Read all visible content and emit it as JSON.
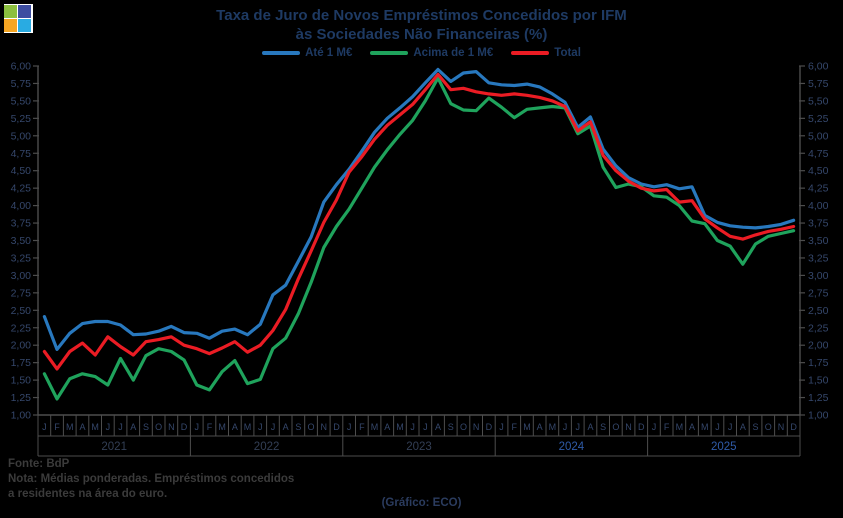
{
  "page": {
    "background": "#000000"
  },
  "logo": {
    "square_colors": {
      "top_left": "#8CBF3F",
      "top_right": "#3D4DA1",
      "bottom_left": "#F5A623",
      "bottom_right": "#29ABE2"
    }
  },
  "title": {
    "line1": "Taxa de Juro de Novos Empréstimos Concedidos por IFM",
    "line2": "às Sociedades Não Financeiras (%)",
    "color": "#1E3A63"
  },
  "legend": [
    {
      "label": "Até 1 M€",
      "color": "#2878BE"
    },
    {
      "label": "Acima de 1 M€",
      "color": "#1FA35C"
    },
    {
      "label": "Total",
      "color": "#EB1C24"
    }
  ],
  "notes": {
    "source": "Fonte: BdP",
    "note_line1": "Nota: Médias ponderadas. Empréstimos concedidos",
    "note_line2": "a residentes na área do euro.",
    "credit": "(Gráfico: ECO)",
    "text_color": "#3B3B3B",
    "credit_color": "#2B3C5F"
  },
  "axis_style": {
    "line_color": "#4D4D4D",
    "tick_label_color": "#35476B",
    "month_letter_color": "#35476B",
    "year_label_colors": [
      "#333F55",
      "#333F55",
      "#333F55",
      "#2F5BA8",
      "#2F5BA8"
    ]
  },
  "chart_data": {
    "type": "line",
    "title": "Taxa de Juro de Novos Empréstimos Concedidos por IFM às Sociedades Não Financeiras (%)",
    "ylim": [
      1.0,
      6.0
    ],
    "ytick_step": 0.25,
    "ytick_decimal": "comma",
    "grid": false,
    "legend_position": "top-center",
    "years": [
      2021,
      2022,
      2023,
      2024,
      2025
    ],
    "month_letters": [
      "J",
      "F",
      "M",
      "A",
      "M",
      "J",
      "J",
      "A",
      "S",
      "O",
      "N",
      "D"
    ],
    "x_range": "Jan 2021 - Dez 2025",
    "series": [
      {
        "name": "Até 1 M€",
        "color": "#2878BE",
        "values": [
          2.41,
          1.94,
          2.17,
          2.31,
          2.34,
          2.34,
          2.29,
          2.15,
          2.16,
          2.2,
          2.27,
          2.18,
          2.17,
          2.1,
          2.2,
          2.23,
          2.15,
          2.3,
          2.72,
          2.86,
          3.2,
          3.55,
          4.05,
          4.3,
          4.52,
          4.78,
          5.05,
          5.25,
          5.4,
          5.56,
          5.76,
          5.95,
          5.78,
          5.9,
          5.92,
          5.76,
          5.73,
          5.72,
          5.74,
          5.7,
          5.6,
          5.48,
          5.12,
          5.27,
          4.81,
          4.57,
          4.4,
          4.31,
          4.27,
          4.3,
          4.24,
          4.27,
          3.86,
          3.76,
          3.71,
          3.69,
          3.68,
          3.7,
          3.73,
          3.79
        ]
      },
      {
        "name": "Acima de 1 M€",
        "color": "#1FA35C",
        "values": [
          1.59,
          1.23,
          1.52,
          1.59,
          1.55,
          1.43,
          1.81,
          1.5,
          1.85,
          1.95,
          1.91,
          1.79,
          1.43,
          1.36,
          1.62,
          1.78,
          1.45,
          1.51,
          1.95,
          2.1,
          2.45,
          2.9,
          3.4,
          3.7,
          3.95,
          4.25,
          4.55,
          4.8,
          5.02,
          5.22,
          5.5,
          5.83,
          5.46,
          5.37,
          5.36,
          5.54,
          5.41,
          5.26,
          5.38,
          5.4,
          5.42,
          5.4,
          5.03,
          5.14,
          4.55,
          4.26,
          4.31,
          4.27,
          4.14,
          4.12,
          4.0,
          3.78,
          3.74,
          3.5,
          3.42,
          3.16,
          3.45,
          3.56,
          3.6,
          3.64
        ]
      },
      {
        "name": "Total",
        "color": "#EB1C24",
        "values": [
          1.91,
          1.66,
          1.91,
          2.03,
          1.86,
          2.12,
          1.98,
          1.86,
          2.05,
          2.08,
          2.12,
          2.0,
          1.95,
          1.88,
          1.96,
          2.05,
          1.9,
          2.0,
          2.21,
          2.51,
          2.95,
          3.35,
          3.76,
          4.08,
          4.48,
          4.7,
          4.95,
          5.15,
          5.3,
          5.45,
          5.66,
          5.88,
          5.66,
          5.68,
          5.63,
          5.6,
          5.58,
          5.6,
          5.58,
          5.55,
          5.5,
          5.42,
          5.07,
          5.2,
          4.72,
          4.5,
          4.35,
          4.25,
          4.21,
          4.23,
          4.05,
          4.07,
          3.81,
          3.68,
          3.56,
          3.52,
          3.58,
          3.63,
          3.66,
          3.7
        ]
      }
    ]
  }
}
